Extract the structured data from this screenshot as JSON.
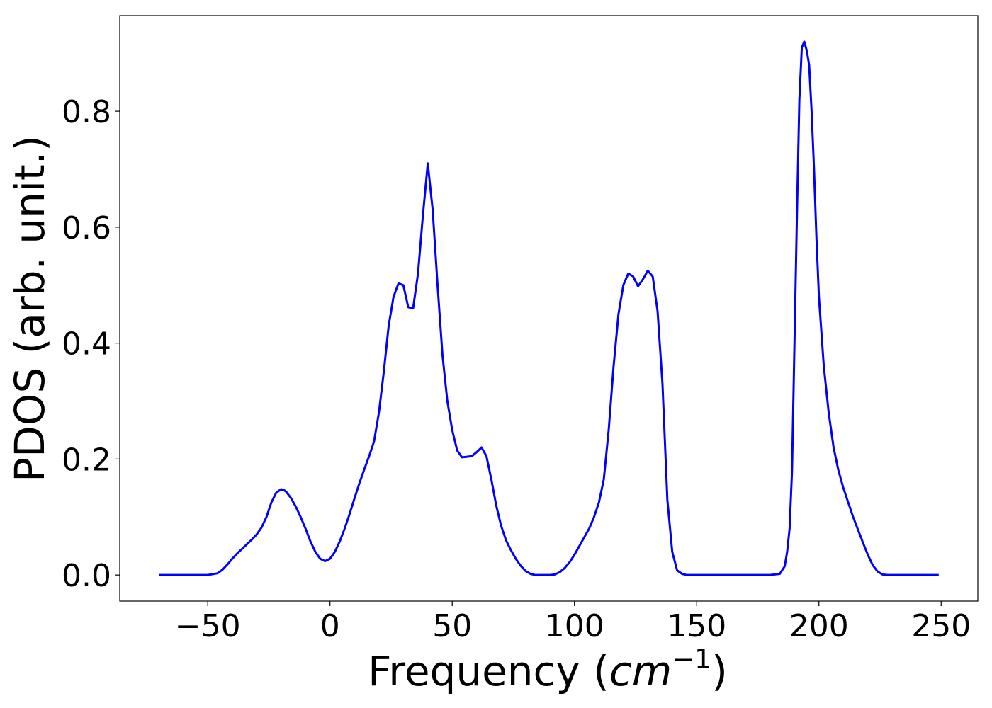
{
  "chart_data": {
    "type": "line",
    "title": "",
    "xlabel_text": "Frequency (",
    "xlabel_math": "cm",
    "xlabel_sup": "−1",
    "xlabel_close": ")",
    "ylabel": "PDOS (arb. unit.)",
    "xlim": [
      -86,
      265
    ],
    "ylim": [
      -0.045,
      0.965
    ],
    "xticks": [
      -50,
      0,
      50,
      100,
      150,
      200,
      250
    ],
    "xtick_labels": [
      "−50",
      "0",
      "50",
      "100",
      "150",
      "200",
      "250"
    ],
    "yticks": [
      0.0,
      0.2,
      0.4,
      0.6,
      0.8
    ],
    "ytick_labels": [
      "0.0",
      "0.2",
      "0.4",
      "0.6",
      "0.8"
    ],
    "grid": false,
    "line_color": "#0000ff",
    "series": [
      {
        "x": [
          -70,
          -60,
          -50,
          -46,
          -44,
          -42,
          -40,
          -38,
          -36,
          -34,
          -32,
          -30,
          -28,
          -26,
          -24,
          -22,
          -20,
          -19,
          -18,
          -16,
          -14,
          -12,
          -10,
          -8,
          -6,
          -4,
          -2,
          0,
          2,
          4,
          6,
          8,
          10,
          12,
          14,
          16,
          18,
          20,
          22,
          24,
          26,
          28,
          30,
          32,
          34,
          36,
          38,
          40,
          42,
          44,
          46,
          48,
          50,
          52,
          54,
          56,
          58,
          60,
          62,
          64,
          66,
          68,
          70,
          72,
          74,
          76,
          78,
          80,
          82,
          84,
          86,
          88,
          90,
          92,
          94,
          96,
          98,
          100,
          102,
          104,
          106,
          108,
          110,
          112,
          114,
          116,
          118,
          120,
          122,
          124,
          126,
          128,
          130,
          132,
          134,
          136,
          138,
          140,
          142,
          144,
          146,
          150,
          160,
          170,
          180,
          184,
          186,
          187,
          188,
          189,
          190,
          191,
          192,
          193,
          194,
          195,
          196,
          197,
          198,
          199,
          200,
          202,
          204,
          206,
          208,
          210,
          212,
          214,
          216,
          218,
          220,
          222,
          224,
          226,
          228,
          230,
          240,
          249
        ],
        "y": [
          0.0,
          0.0,
          0.0,
          0.003,
          0.009,
          0.018,
          0.028,
          0.037,
          0.045,
          0.053,
          0.061,
          0.07,
          0.082,
          0.1,
          0.125,
          0.142,
          0.148,
          0.147,
          0.144,
          0.133,
          0.118,
          0.1,
          0.08,
          0.058,
          0.04,
          0.028,
          0.024,
          0.028,
          0.04,
          0.058,
          0.08,
          0.105,
          0.132,
          0.158,
          0.182,
          0.205,
          0.23,
          0.28,
          0.35,
          0.43,
          0.48,
          0.503,
          0.5,
          0.462,
          0.46,
          0.52,
          0.62,
          0.71,
          0.63,
          0.5,
          0.38,
          0.3,
          0.25,
          0.215,
          0.203,
          0.204,
          0.205,
          0.212,
          0.22,
          0.205,
          0.165,
          0.12,
          0.085,
          0.06,
          0.043,
          0.028,
          0.016,
          0.007,
          0.002,
          0.0,
          0.0,
          0.0,
          0.0,
          0.001,
          0.005,
          0.012,
          0.022,
          0.035,
          0.05,
          0.065,
          0.08,
          0.1,
          0.125,
          0.165,
          0.25,
          0.36,
          0.45,
          0.5,
          0.52,
          0.515,
          0.498,
          0.51,
          0.525,
          0.515,
          0.455,
          0.33,
          0.13,
          0.04,
          0.008,
          0.002,
          0.0,
          0.0,
          0.0,
          0.0,
          0.0,
          0.002,
          0.015,
          0.04,
          0.08,
          0.18,
          0.4,
          0.62,
          0.82,
          0.91,
          0.92,
          0.905,
          0.88,
          0.8,
          0.7,
          0.58,
          0.48,
          0.36,
          0.28,
          0.22,
          0.18,
          0.15,
          0.125,
          0.1,
          0.078,
          0.056,
          0.035,
          0.017,
          0.006,
          0.001,
          0.0,
          0.0,
          0.0,
          0.0
        ]
      }
    ]
  }
}
